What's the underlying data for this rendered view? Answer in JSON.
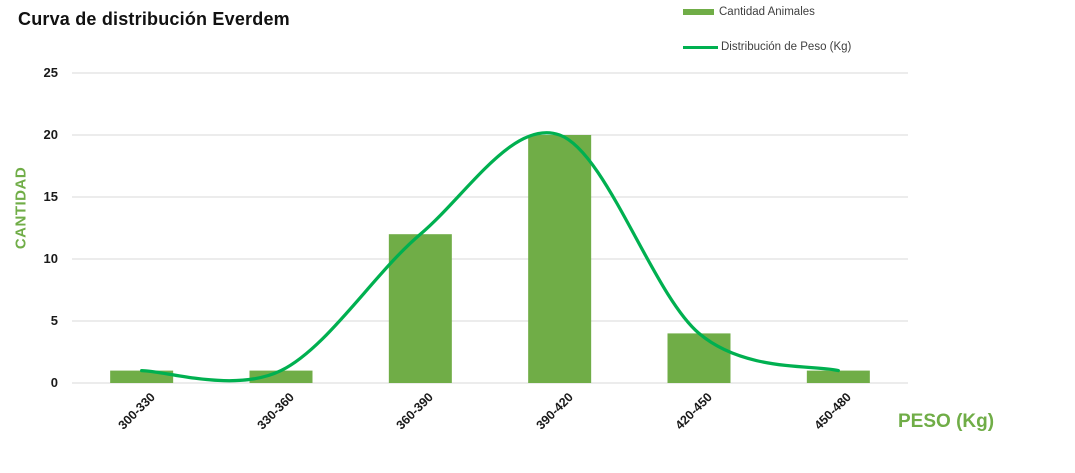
{
  "title": "Curva de distribución Everdem",
  "axes": {
    "y_title": "CANTIDAD",
    "x_title": "PESO (Kg)"
  },
  "chart_data": {
    "type": "bar",
    "title": "Curva de distribución Everdem",
    "categories": [
      "300-330",
      "330-360",
      "360-390",
      "390-420",
      "420-450",
      "450-480"
    ],
    "series": [
      {
        "name": "Cantidad Animales",
        "type": "bar",
        "color": "#70AD47",
        "values": [
          1,
          1,
          12,
          20,
          4,
          1
        ]
      },
      {
        "name": "Distribución de Peso (Kg)",
        "type": "line",
        "smooth": true,
        "color": "#00B050",
        "values": [
          1,
          1,
          12,
          20,
          4,
          1
        ]
      }
    ],
    "xlabel": "PESO (Kg)",
    "ylabel": "CANTIDAD",
    "ylim": [
      0,
      25
    ],
    "ytick_step": 5,
    "yticks": [
      0,
      5,
      10,
      15,
      20,
      25
    ],
    "grid": "horizontal",
    "grid_color": "#D9D9D9",
    "legend_position": "top-right"
  }
}
